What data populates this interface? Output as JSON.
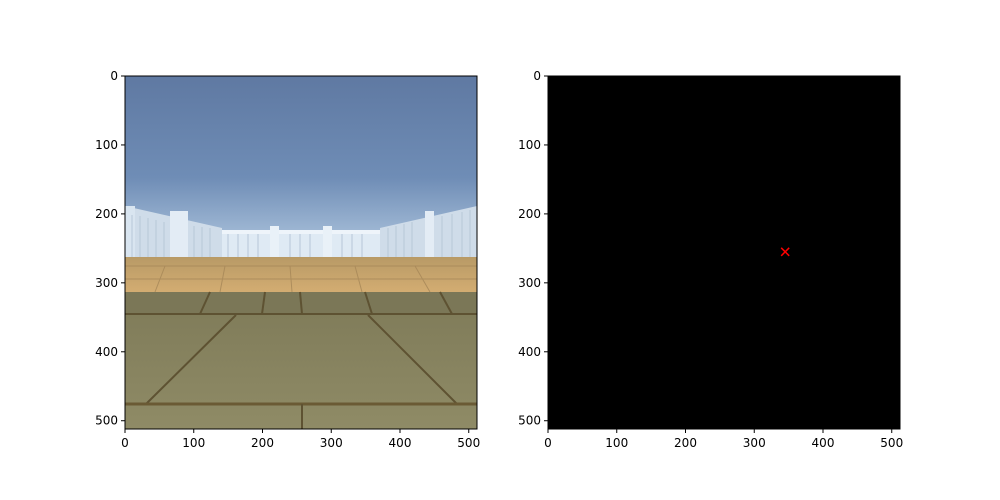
{
  "figure": {
    "background": "#ffffff"
  },
  "chart_data": [
    {
      "type": "image",
      "title": "",
      "xlabel": "",
      "ylabel": "",
      "xlim": [
        0,
        512
      ],
      "ylim": [
        512,
        0
      ],
      "x_ticks": [
        0,
        100,
        200,
        300,
        400,
        500
      ],
      "y_ticks": [
        0,
        100,
        200,
        300,
        400,
        500
      ],
      "x_tick_labels": [
        "0",
        "100",
        "200",
        "300",
        "400",
        "500"
      ],
      "y_tick_labels": [
        "0",
        "100",
        "200",
        "300",
        "400",
        "500"
      ],
      "image_content": "first-person view of a paved courtyard enclosed by a white picket fence under a blue sky",
      "colors": {
        "sky_top": "#5f7aa3",
        "sky_bottom": "#a9c4de",
        "fence": "#dbe7f2",
        "far_floor": "#c9a56a",
        "near_floor": "#8a8762",
        "tile_grout": "#5f5230"
      }
    },
    {
      "type": "image",
      "title": "",
      "xlabel": "",
      "ylabel": "",
      "xlim": [
        0,
        512
      ],
      "ylim": [
        512,
        0
      ],
      "x_ticks": [
        0,
        100,
        200,
        300,
        400,
        500
      ],
      "y_ticks": [
        0,
        100,
        200,
        300,
        400,
        500
      ],
      "x_tick_labels": [
        "0",
        "100",
        "200",
        "300",
        "400",
        "500"
      ],
      "y_tick_labels": [
        "0",
        "100",
        "200",
        "300",
        "400",
        "500"
      ],
      "image_content": "black image",
      "background": "#000000",
      "markers": [
        {
          "x": 345,
          "y": 255,
          "symbol": "x",
          "color": "#ff0000"
        }
      ]
    }
  ]
}
